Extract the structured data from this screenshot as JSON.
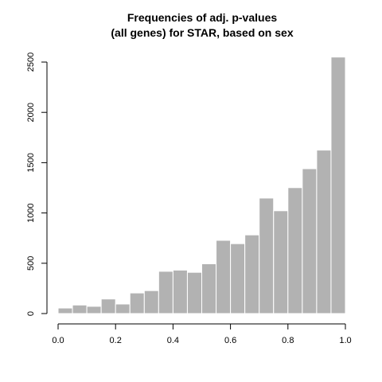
{
  "chart_data": {
    "type": "bar",
    "title_line1": "Frequencies of adj. p-values",
    "title_line2": "(all genes) for STAR, based on sex",
    "xlabel": "",
    "ylabel": "",
    "xlim": [
      0.0,
      1.0
    ],
    "ylim": [
      0,
      2550
    ],
    "bin_width": 0.05,
    "bins_start": [
      0.0,
      0.05,
      0.1,
      0.15,
      0.2,
      0.25,
      0.3,
      0.35,
      0.4,
      0.45,
      0.5,
      0.55,
      0.6,
      0.65,
      0.7,
      0.75,
      0.8,
      0.85,
      0.9,
      0.95
    ],
    "values": [
      55,
      85,
      72,
      145,
      95,
      205,
      228,
      420,
      432,
      410,
      495,
      728,
      695,
      782,
      1148,
      1022,
      1252,
      1440,
      1625,
      2550
    ],
    "x_ticks": [
      "0.0",
      "0.2",
      "0.4",
      "0.6",
      "0.8",
      "1.0"
    ],
    "x_tick_values": [
      0.0,
      0.2,
      0.4,
      0.6,
      0.8,
      1.0
    ],
    "y_ticks": [
      "0",
      "500",
      "1000",
      "1500",
      "2000",
      "2500"
    ],
    "y_tick_values": [
      0,
      500,
      1000,
      1500,
      2000,
      2500
    ],
    "bar_color": "#b2b2b2",
    "grid": false,
    "legend": "none"
  }
}
